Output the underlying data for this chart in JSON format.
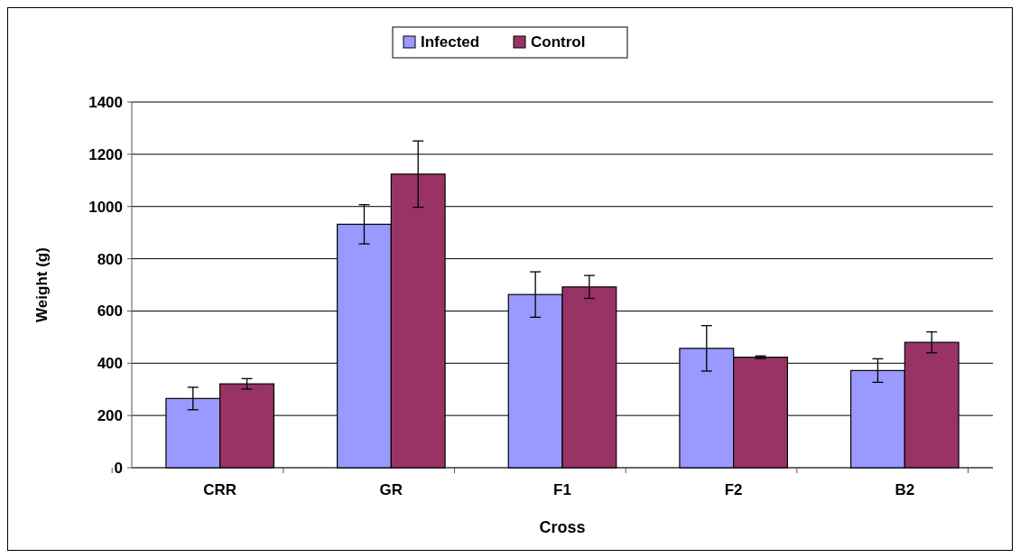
{
  "chart_data": {
    "type": "bar",
    "xlabel": "Cross",
    "ylabel": "Weight (g)",
    "categories": [
      "CRR",
      "GR",
      "F1",
      "F2",
      "B2"
    ],
    "series": [
      {
        "name": "Infected",
        "color": "#9999ff",
        "values": [
          265,
          932,
          663,
          457,
          372
        ],
        "errors": [
          43,
          75,
          87,
          87,
          45
        ]
      },
      {
        "name": "Control",
        "color": "#993366",
        "values": [
          321,
          1124,
          692,
          423,
          480
        ],
        "errors": [
          20,
          127,
          44,
          5,
          40
        ]
      }
    ],
    "ylim": [
      0,
      1400
    ],
    "yticks": [
      0,
      200,
      400,
      600,
      800,
      1000,
      1200,
      1400
    ],
    "grid": "y",
    "legend": "top"
  }
}
